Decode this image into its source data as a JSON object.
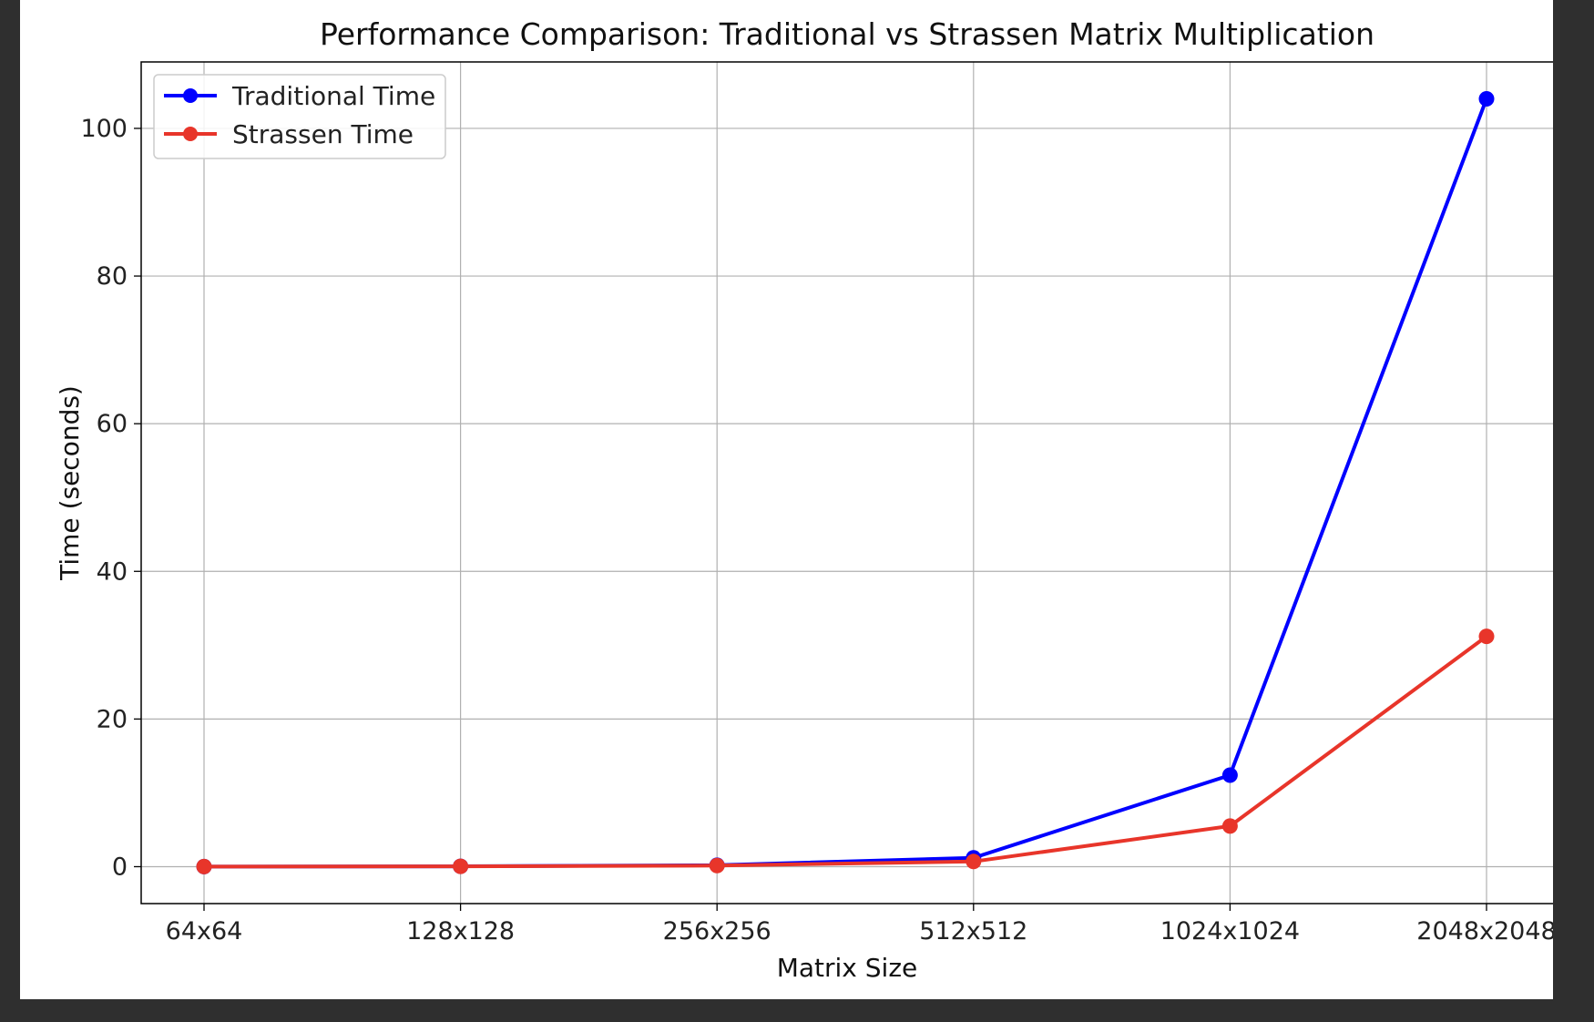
{
  "chart_data": {
    "type": "line",
    "title": "Performance Comparison: Traditional vs Strassen Matrix Multiplication",
    "xlabel": "Matrix Size",
    "ylabel": "Time (seconds)",
    "categories": [
      "64x64",
      "128x128",
      "256x256",
      "512x512",
      "1024x1024",
      "2048x2048"
    ],
    "yticks": [
      "0",
      "20",
      "40",
      "60",
      "80",
      "100"
    ],
    "ylim": [
      -5,
      109
    ],
    "grid": true,
    "legend_position": "top-left",
    "series": [
      {
        "name": "Traditional Time",
        "color": "#0000ff",
        "values": [
          0.01,
          0.05,
          0.2,
          1.2,
          12.4,
          104.0
        ]
      },
      {
        "name": "Strassen Time",
        "color": "#e8352a",
        "values": [
          0.01,
          0.04,
          0.15,
          0.7,
          5.5,
          31.2
        ]
      }
    ]
  }
}
